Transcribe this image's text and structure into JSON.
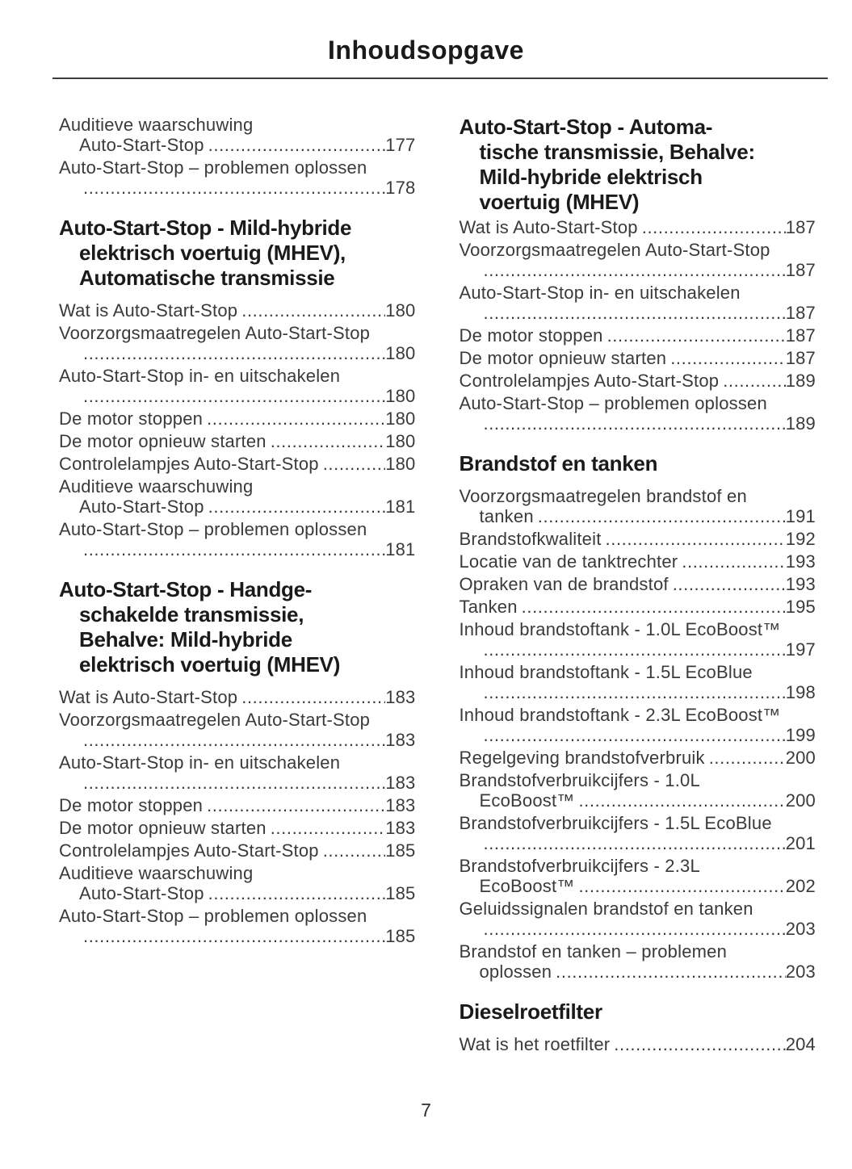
{
  "page": {
    "title": "Inhoudsopgave",
    "number": "7"
  },
  "toc": {
    "left": [
      {
        "heading": null,
        "entries": [
          [
            {
              "t": "Auditieve waarschuwing"
            },
            {
              "t": "Auto-Start-Stop",
              "p": "177",
              "i": true
            }
          ],
          [
            {
              "t": "Auto-Start-Stop – problemen oplossen"
            },
            {
              "p": "178",
              "i": true
            }
          ]
        ]
      },
      {
        "heading": [
          "Auto-Start-Stop - Mild-hybride",
          "elektrisch voertuig (MHEV),",
          "Automatische transmissie"
        ],
        "entries": [
          [
            {
              "t": "Wat is Auto-Start-Stop",
              "p": "180"
            }
          ],
          [
            {
              "t": "Voorzorgsmaatregelen Auto-Start-Stop"
            },
            {
              "p": "180",
              "i": true
            }
          ],
          [
            {
              "t": "Auto-Start-Stop in- en uitschakelen"
            },
            {
              "p": "180",
              "i": true
            }
          ],
          [
            {
              "t": "De motor stoppen",
              "p": "180"
            }
          ],
          [
            {
              "t": "De motor opnieuw starten",
              "p": "180"
            }
          ],
          [
            {
              "t": "Controlelampjes Auto-Start-Stop",
              "p": "180"
            }
          ],
          [
            {
              "t": "Auditieve waarschuwing"
            },
            {
              "t": "Auto-Start-Stop",
              "p": "181",
              "i": true
            }
          ],
          [
            {
              "t": "Auto-Start-Stop – problemen oplossen"
            },
            {
              "p": "181",
              "i": true
            }
          ]
        ]
      },
      {
        "heading": [
          "Auto-Start-Stop - Handge-",
          "schakelde transmissie,",
          "Behalve: Mild-hybride",
          "elektrisch voertuig (MHEV)"
        ],
        "entries": [
          [
            {
              "t": "Wat is Auto-Start-Stop",
              "p": "183"
            }
          ],
          [
            {
              "t": "Voorzorgsmaatregelen Auto-Start-Stop"
            },
            {
              "p": "183",
              "i": true
            }
          ],
          [
            {
              "t": "Auto-Start-Stop in- en uitschakelen"
            },
            {
              "p": "183",
              "i": true
            }
          ],
          [
            {
              "t": "De motor stoppen",
              "p": "183"
            }
          ],
          [
            {
              "t": "De motor opnieuw starten",
              "p": "183"
            }
          ],
          [
            {
              "t": "Controlelampjes Auto-Start-Stop",
              "p": "185"
            }
          ],
          [
            {
              "t": "Auditieve waarschuwing"
            },
            {
              "t": "Auto-Start-Stop",
              "p": "185",
              "i": true
            }
          ],
          [
            {
              "t": "Auto-Start-Stop – problemen oplossen"
            },
            {
              "p": "185",
              "i": true
            }
          ]
        ]
      }
    ],
    "right": [
      {
        "heading": [
          "Auto-Start-Stop - Automa-",
          "tische transmissie, Behalve:",
          "Mild-hybride elektrisch",
          "voertuig (MHEV)"
        ],
        "entries": [
          [
            {
              "t": "Wat is Auto-Start-Stop",
              "p": "187"
            }
          ],
          [
            {
              "t": "Voorzorgsmaatregelen Auto-Start-Stop"
            },
            {
              "p": "187",
              "i": true
            }
          ],
          [
            {
              "t": "Auto-Start-Stop in- en uitschakelen"
            },
            {
              "p": "187",
              "i": true
            }
          ],
          [
            {
              "t": "De motor stoppen",
              "p": "187"
            }
          ],
          [
            {
              "t": "De motor opnieuw starten",
              "p": "187"
            }
          ],
          [
            {
              "t": "Controlelampjes Auto-Start-Stop",
              "p": "189"
            }
          ],
          [
            {
              "t": "Auto-Start-Stop – problemen oplossen"
            },
            {
              "p": "189",
              "i": true
            }
          ]
        ]
      },
      {
        "heading": [
          "Brandstof en tanken"
        ],
        "entries": [
          [
            {
              "t": "Voorzorgsmaatregelen brandstof en"
            },
            {
              "t": "tanken",
              "p": "191",
              "i": true
            }
          ],
          [
            {
              "t": "Brandstofkwaliteit",
              "p": "192"
            }
          ],
          [
            {
              "t": "Locatie van de tanktrechter",
              "p": "193"
            }
          ],
          [
            {
              "t": "Opraken van de brandstof",
              "p": "193"
            }
          ],
          [
            {
              "t": "Tanken",
              "p": "195"
            }
          ],
          [
            {
              "t": "Inhoud brandstoftank - 1.0L EcoBoost™"
            },
            {
              "p": "197",
              "i": true
            }
          ],
          [
            {
              "t": "Inhoud brandstoftank - 1.5L EcoBlue"
            },
            {
              "p": "198",
              "i": true
            }
          ],
          [
            {
              "t": "Inhoud brandstoftank - 2.3L EcoBoost™"
            },
            {
              "p": "199",
              "i": true
            }
          ],
          [
            {
              "t": "Regelgeving brandstofverbruik",
              "p": "200"
            }
          ],
          [
            {
              "t": "Brandstofverbruikcijfers - 1.0L"
            },
            {
              "t": "EcoBoost™",
              "p": "200",
              "i": true
            }
          ],
          [
            {
              "t": "Brandstofverbruikcijfers - 1.5L EcoBlue"
            },
            {
              "p": "201",
              "i": true
            }
          ],
          [
            {
              "t": "Brandstofverbruikcijfers - 2.3L"
            },
            {
              "t": "EcoBoost™",
              "p": "202",
              "i": true
            }
          ],
          [
            {
              "t": "Geluidssignalen brandstof en tanken"
            },
            {
              "p": "203",
              "i": true
            }
          ],
          [
            {
              "t": "Brandstof en tanken – problemen"
            },
            {
              "t": "oplossen",
              "p": "203",
              "i": true
            }
          ]
        ]
      },
      {
        "heading": [
          "Dieselroetfilter"
        ],
        "entries": [
          [
            {
              "t": "Wat is het roetfilter",
              "p": "204"
            }
          ]
        ]
      }
    ]
  }
}
